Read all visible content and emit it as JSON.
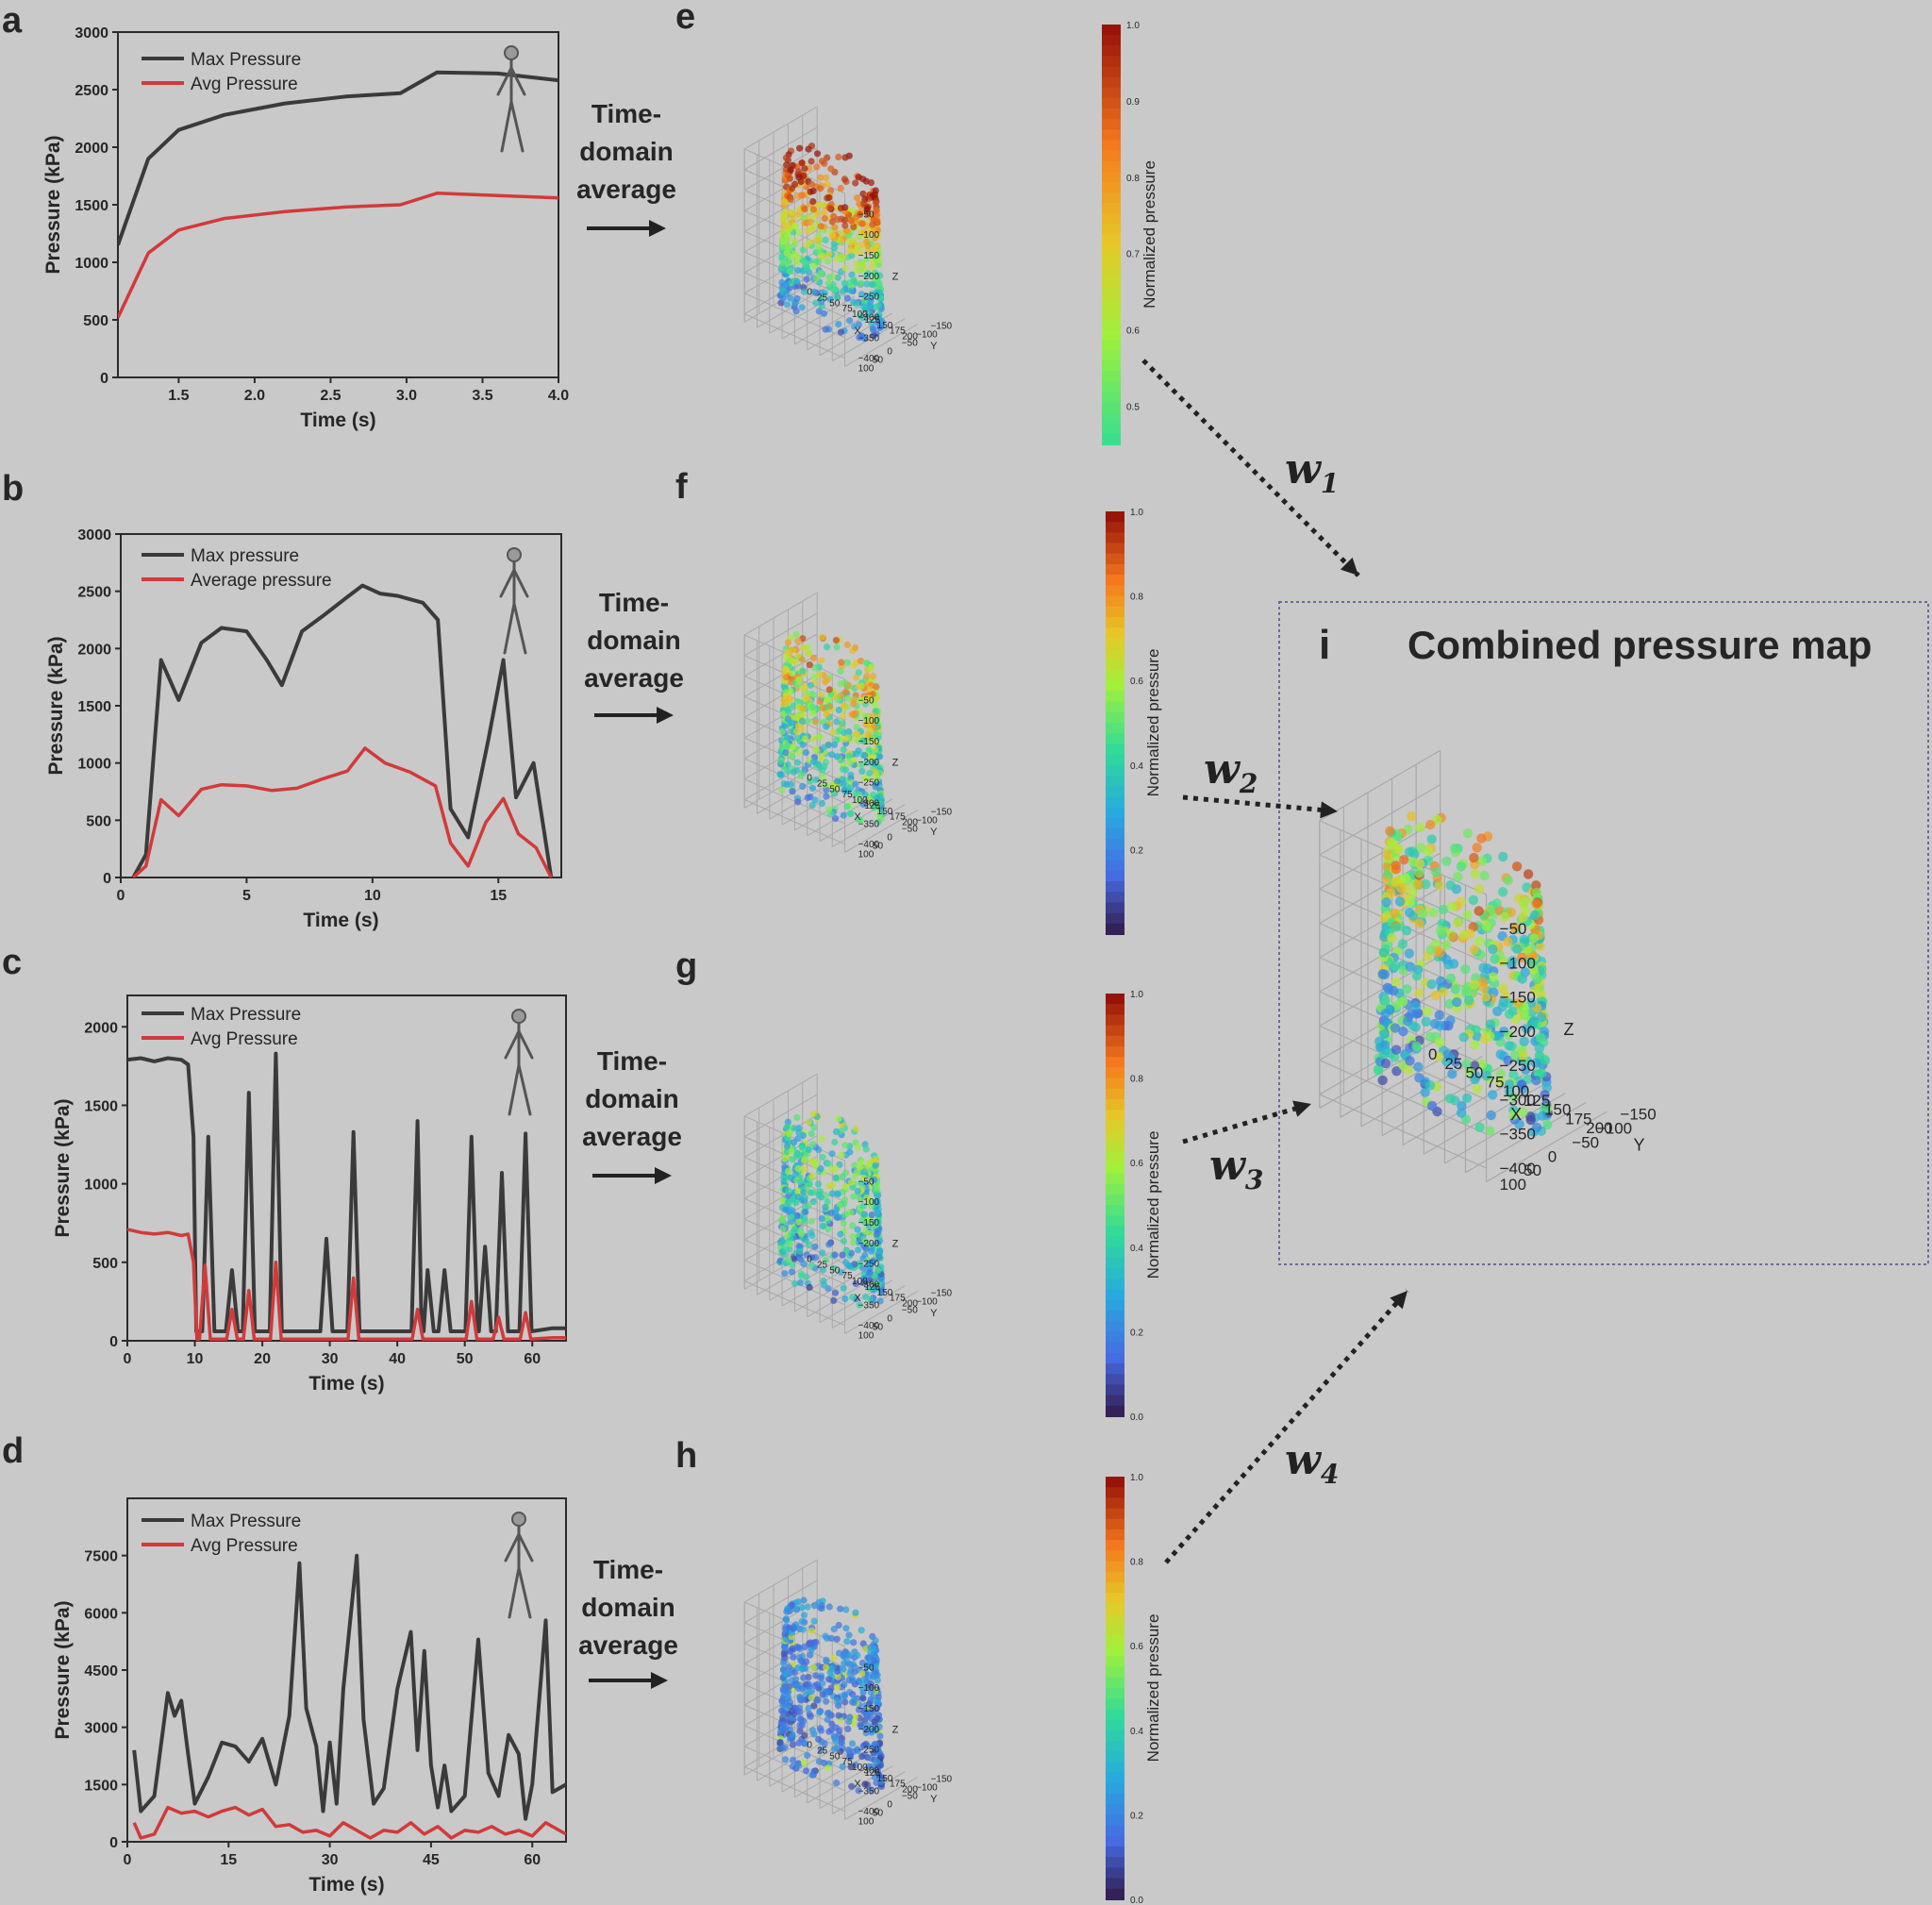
{
  "colors": {
    "bg": "#c9c9c9",
    "axis": "#2b2b2b",
    "max": "#3a3a3a",
    "avg": "#d23a3a",
    "arrow": "#222222",
    "box": "#6b6b9a",
    "grid": "#a9a9a9"
  },
  "panel_letters": {
    "a": "a",
    "b": "b",
    "c": "c",
    "d": "d",
    "e": "e",
    "f": "f",
    "g": "g",
    "h": "h",
    "i": "i"
  },
  "arrow_label_lines": [
    "Time-",
    "domain",
    "average"
  ],
  "weights": [
    {
      "base": "w",
      "sub": "1"
    },
    {
      "base": "w",
      "sub": "2"
    },
    {
      "base": "w",
      "sub": "3"
    },
    {
      "base": "w",
      "sub": "4"
    }
  ],
  "combined_title": "Combined pressure map",
  "colorbar_label": "Normalized pressure",
  "scatter_axes": {
    "x_label": "X",
    "y_label": "Y",
    "z_label": "Z",
    "x_ticks": [
      "0",
      "25",
      "50",
      "75",
      "100",
      "125",
      "150",
      "175",
      "200"
    ],
    "y_ticks": [
      "100",
      "50",
      "0",
      "−50",
      "−100",
      "−150"
    ],
    "z_ticks": [
      "−50",
      "−100",
      "−150",
      "−200",
      "−250",
      "−300",
      "−350",
      "−400"
    ]
  },
  "colorbars": [
    {
      "ticks": [
        "1.0",
        "0.9",
        "0.8",
        "0.7",
        "0.6",
        "0.5"
      ]
    },
    {
      "ticks": [
        "1.0",
        "0.8",
        "0.6",
        "0.4",
        "0.2"
      ]
    },
    {
      "ticks": [
        "1.0",
        "0.8",
        "0.6",
        "0.4",
        "0.2",
        "0.0"
      ]
    },
    {
      "ticks": [
        "1.0",
        "0.8",
        "0.6",
        "0.4",
        "0.2",
        "0.0"
      ]
    }
  ],
  "chart_data": [
    {
      "panel": "a",
      "type": "line",
      "xlabel": "Time (s)",
      "ylabel": "Pressure (kPa)",
      "xlim": [
        1.1,
        4.0
      ],
      "ylim": [
        0,
        3000
      ],
      "xticks": [
        "1.5",
        "2.0",
        "2.5",
        "3.0",
        "3.5",
        "4.0"
      ],
      "yticks": [
        "0",
        "500",
        "1000",
        "1500",
        "2000",
        "2500",
        "3000"
      ],
      "series": [
        {
          "name": "Max Pressure",
          "points": [
            [
              1.1,
              1150
            ],
            [
              1.3,
              1900
            ],
            [
              1.5,
              2150
            ],
            [
              1.8,
              2280
            ],
            [
              2.2,
              2380
            ],
            [
              2.6,
              2440
            ],
            [
              2.96,
              2470
            ],
            [
              3.2,
              2650
            ],
            [
              3.6,
              2640
            ],
            [
              4.0,
              2580
            ]
          ]
        },
        {
          "name": "Avg Pressure",
          "points": [
            [
              1.1,
              520
            ],
            [
              1.3,
              1080
            ],
            [
              1.5,
              1280
            ],
            [
              1.8,
              1380
            ],
            [
              2.2,
              1440
            ],
            [
              2.6,
              1480
            ],
            [
              2.96,
              1500
            ],
            [
              3.2,
              1600
            ],
            [
              3.6,
              1580
            ],
            [
              4.0,
              1560
            ]
          ]
        }
      ]
    },
    {
      "panel": "b",
      "type": "line",
      "xlabel": "Time (s)",
      "ylabel": "Pressure (kPa)",
      "xlim": [
        0,
        17.5
      ],
      "ylim": [
        0,
        3000
      ],
      "xticks": [
        "0",
        "5",
        "10",
        "15"
      ],
      "yticks": [
        "0",
        "500",
        "1000",
        "1500",
        "2000",
        "2500",
        "3000"
      ],
      "series": [
        {
          "name": "Max pressure",
          "points": [
            [
              0.5,
              0
            ],
            [
              1.0,
              200
            ],
            [
              1.6,
              1900
            ],
            [
              2.3,
              1550
            ],
            [
              3.2,
              2050
            ],
            [
              4,
              2180
            ],
            [
              5,
              2150
            ],
            [
              5.8,
              1900
            ],
            [
              6.4,
              1680
            ],
            [
              7.2,
              2150
            ],
            [
              8,
              2280
            ],
            [
              9,
              2450
            ],
            [
              9.6,
              2550
            ],
            [
              10.3,
              2480
            ],
            [
              11,
              2460
            ],
            [
              12,
              2400
            ],
            [
              12.6,
              2250
            ],
            [
              13.1,
              600
            ],
            [
              13.8,
              350
            ],
            [
              14.6,
              1200
            ],
            [
              15.2,
              1900
            ],
            [
              15.7,
              700
            ],
            [
              16.4,
              1000
            ],
            [
              17.1,
              0
            ]
          ]
        },
        {
          "name": "Average pressure",
          "points": [
            [
              0.5,
              0
            ],
            [
              1.0,
              100
            ],
            [
              1.6,
              680
            ],
            [
              2.3,
              540
            ],
            [
              3.2,
              770
            ],
            [
              4,
              810
            ],
            [
              5,
              800
            ],
            [
              6,
              760
            ],
            [
              7,
              780
            ],
            [
              8,
              860
            ],
            [
              9,
              930
            ],
            [
              9.7,
              1130
            ],
            [
              10.5,
              1000
            ],
            [
              11.5,
              920
            ],
            [
              12.5,
              800
            ],
            [
              13.1,
              300
            ],
            [
              13.8,
              100
            ],
            [
              14.5,
              480
            ],
            [
              15.2,
              690
            ],
            [
              15.8,
              380
            ],
            [
              16.5,
              260
            ],
            [
              17.1,
              0
            ]
          ]
        }
      ]
    },
    {
      "panel": "c",
      "type": "line",
      "xlabel": "Time (s)",
      "ylabel": "Pressure (kPa)",
      "xlim": [
        0,
        65
      ],
      "ylim": [
        0,
        2200
      ],
      "xticks": [
        "0",
        "10",
        "20",
        "30",
        "40",
        "50",
        "60"
      ],
      "yticks": [
        "0",
        "500",
        "1000",
        "1500",
        "2000"
      ],
      "spikes_max": [
        [
          12,
          1300
        ],
        [
          15.5,
          450
        ],
        [
          18,
          1580
        ],
        [
          22,
          1830
        ],
        [
          29.5,
          650
        ],
        [
          33.5,
          1330
        ],
        [
          43,
          1400
        ],
        [
          44.5,
          450
        ],
        [
          47,
          450
        ],
        [
          51,
          1300
        ],
        [
          53,
          600
        ],
        [
          55.5,
          1070
        ],
        [
          59,
          1320
        ]
      ],
      "spikes_avg": [
        [
          11.5,
          480
        ],
        [
          15.5,
          200
        ],
        [
          18,
          320
        ],
        [
          22,
          500
        ],
        [
          33.5,
          400
        ],
        [
          43,
          200
        ],
        [
          51,
          250
        ],
        [
          55,
          150
        ],
        [
          59,
          180
        ]
      ],
      "series": [
        {
          "name": "Max Pressure"
        },
        {
          "name": "Avg Pressure"
        }
      ]
    },
    {
      "panel": "d",
      "type": "line",
      "xlabel": "Time (s)",
      "ylabel": "Pressure (kPa)",
      "xlim": [
        0,
        65
      ],
      "ylim": [
        0,
        9000
      ],
      "xticks": [
        "0",
        "15",
        "30",
        "45",
        "60"
      ],
      "yticks": [
        "0",
        "1500",
        "3000",
        "4500",
        "6000",
        "7500"
      ],
      "series": [
        {
          "name": "Max Pressure",
          "points": [
            [
              1,
              2400
            ],
            [
              2,
              800
            ],
            [
              4,
              1200
            ],
            [
              6,
              3900
            ],
            [
              7,
              3300
            ],
            [
              8,
              3700
            ],
            [
              9,
              2300
            ],
            [
              10,
              1000
            ],
            [
              12,
              1700
            ],
            [
              14,
              2600
            ],
            [
              16,
              2500
            ],
            [
              18,
              2100
            ],
            [
              20,
              2700
            ],
            [
              22,
              1500
            ],
            [
              24,
              3300
            ],
            [
              25.5,
              7300
            ],
            [
              26.5,
              3500
            ],
            [
              28,
              2500
            ],
            [
              29,
              800
            ],
            [
              30,
              2600
            ],
            [
              31,
              1000
            ],
            [
              32,
              4000
            ],
            [
              34,
              7500
            ],
            [
              35,
              3200
            ],
            [
              36.5,
              1000
            ],
            [
              38,
              1400
            ],
            [
              40,
              4000
            ],
            [
              42,
              5500
            ],
            [
              43,
              2400
            ],
            [
              44,
              5000
            ],
            [
              45,
              2000
            ],
            [
              46,
              900
            ],
            [
              47,
              2000
            ],
            [
              48,
              800
            ],
            [
              50,
              1200
            ],
            [
              52,
              5300
            ],
            [
              53.5,
              1800
            ],
            [
              55,
              1200
            ],
            [
              56.5,
              2800
            ],
            [
              58,
              2300
            ],
            [
              59,
              600
            ],
            [
              60,
              1500
            ],
            [
              62,
              5800
            ],
            [
              63,
              1300
            ],
            [
              65,
              1500
            ]
          ]
        },
        {
          "name": "Avg Pressure",
          "points": [
            [
              1,
              500
            ],
            [
              2,
              100
            ],
            [
              4,
              200
            ],
            [
              6,
              900
            ],
            [
              8,
              750
            ],
            [
              10,
              800
            ],
            [
              12,
              650
            ],
            [
              14,
              800
            ],
            [
              16,
              900
            ],
            [
              18,
              700
            ],
            [
              20,
              850
            ],
            [
              22,
              400
            ],
            [
              24,
              450
            ],
            [
              26,
              250
            ],
            [
              28,
              300
            ],
            [
              30,
              150
            ],
            [
              32,
              500
            ],
            [
              34,
              300
            ],
            [
              36,
              100
            ],
            [
              38,
              300
            ],
            [
              40,
              250
            ],
            [
              42,
              500
            ],
            [
              44,
              200
            ],
            [
              46,
              400
            ],
            [
              48,
              100
            ],
            [
              50,
              300
            ],
            [
              52,
              250
            ],
            [
              54,
              400
            ],
            [
              56,
              200
            ],
            [
              58,
              300
            ],
            [
              60,
              150
            ],
            [
              62,
              500
            ],
            [
              64,
              300
            ],
            [
              65,
              200
            ]
          ]
        }
      ]
    }
  ]
}
